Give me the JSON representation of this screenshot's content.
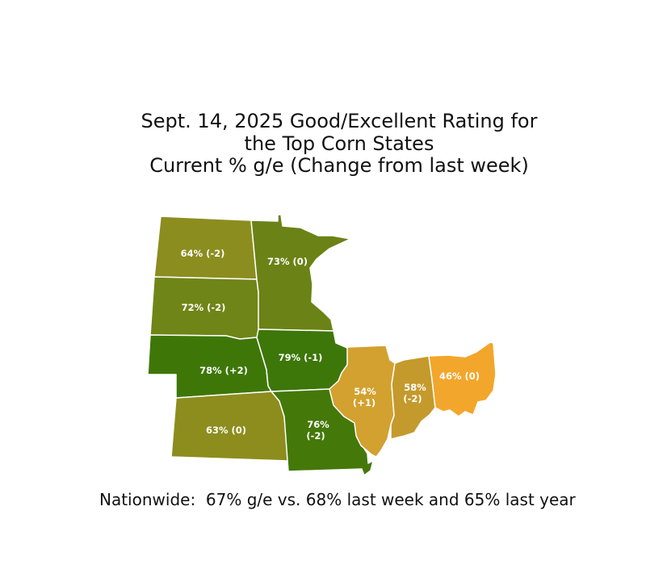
{
  "title": {
    "line1": "Sept. 14, 2025 Good/Excellent Rating for",
    "line2": "the Top Corn States",
    "line3": "Current % g/e (Change from last week)"
  },
  "states": {
    "north_dakota": {
      "label": "64% (-2)",
      "pct": 64,
      "change": -2,
      "color": "#8c8d1f"
    },
    "south_dakota": {
      "label": "72% (-2)",
      "pct": 72,
      "change": -2,
      "color": "#6f8517"
    },
    "nebraska": {
      "label": "78% (+2)",
      "pct": 78,
      "change": 2,
      "color": "#3e7708"
    },
    "kansas": {
      "label": "63% (0)",
      "pct": 63,
      "change": 0,
      "color": "#8d8d1e"
    },
    "minnesota": {
      "label": "73% (0)",
      "pct": 73,
      "change": 0,
      "color": "#6b8216"
    },
    "iowa": {
      "label": "79% (-1)",
      "pct": 79,
      "change": -1,
      "color": "#3d7609"
    },
    "missouri": {
      "label_line1": "76%",
      "label_line2": "(-2)",
      "pct": 76,
      "change": -2,
      "color": "#447808"
    },
    "illinois": {
      "label_line1": "54%",
      "label_line2": "(+1)",
      "pct": 54,
      "change": 1,
      "color": "#d2a12f"
    },
    "indiana": {
      "label_line1": "58%",
      "label_line2": "(-2)",
      "pct": 58,
      "change": -2,
      "color": "#c59a2c"
    },
    "ohio": {
      "label": "46% (0)",
      "pct": 46,
      "change": 0,
      "color": "#f2a62b"
    }
  },
  "footer": "Nationwide:  67% g/e vs. 68% last week and 65% last year"
}
